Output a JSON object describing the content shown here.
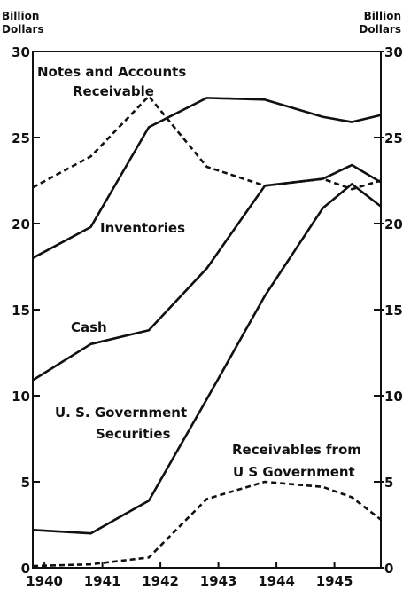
{
  "chart_data": {
    "type": "line",
    "y_label": [
      "Billion",
      "Dollars"
    ],
    "y2_label": [
      "Billion",
      "Dollars"
    ],
    "x": [
      1939.8,
      1940.8,
      1941.8,
      1942.8,
      1943.8,
      1944.8,
      1945.3,
      1945.8
    ],
    "xlim": [
      1939.8,
      1945.8
    ],
    "xticks": [
      1940,
      1941,
      1942,
      1943,
      1944,
      1945
    ],
    "ylim": [
      0,
      30
    ],
    "yticks": [
      0,
      5,
      10,
      15,
      20,
      25,
      30
    ],
    "y2lim": [
      0,
      30
    ],
    "y2ticks": [
      0,
      5,
      10,
      15,
      20,
      25,
      30
    ],
    "series": [
      {
        "label": [
          "Notes and Accounts",
          "Receivable"
        ],
        "color": "#111111",
        "style": "dashed",
        "values": [
          22.1,
          23.9,
          27.4,
          23.3,
          22.2,
          22.6,
          22.0,
          22.5
        ]
      },
      {
        "label": [
          "Inventories"
        ],
        "color": "#111111",
        "style": "solid",
        "values": [
          18.0,
          19.8,
          25.6,
          27.3,
          27.2,
          26.2,
          25.9,
          26.3
        ]
      },
      {
        "label": [
          "Cash"
        ],
        "color": "#111111",
        "style": "solid",
        "values": [
          10.9,
          13.0,
          13.8,
          17.4,
          22.2,
          22.6,
          23.4,
          22.4
        ]
      },
      {
        "label": [
          "U. S. Government",
          "Securities"
        ],
        "color": "#111111",
        "style": "solid",
        "values": [
          2.2,
          2.0,
          3.9,
          9.8,
          15.8,
          20.9,
          22.3,
          21.0
        ]
      },
      {
        "label": [
          "Receivables from",
          "U S Government"
        ],
        "color": "#111111",
        "style": "dashed",
        "values": [
          0.1,
          0.2,
          0.6,
          4.0,
          5.0,
          4.7,
          4.1,
          2.8
        ]
      }
    ]
  }
}
